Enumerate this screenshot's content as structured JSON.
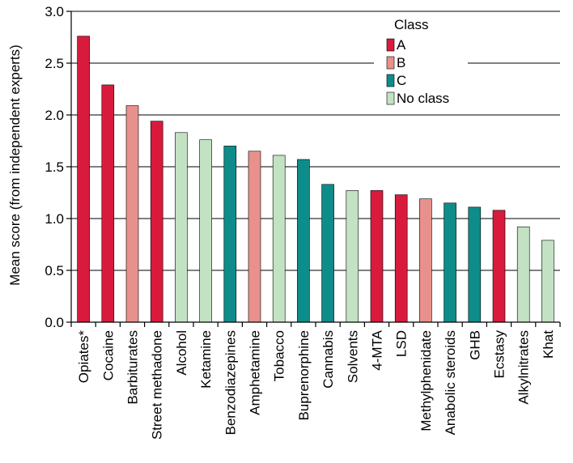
{
  "chart_data": {
    "type": "bar",
    "ylabel": "Mean score (from independent experts)",
    "ylim": [
      0,
      3.0
    ],
    "yticks": [
      "0.0",
      "0.5",
      "1.0",
      "1.5",
      "2.0",
      "2.5",
      "3.0"
    ],
    "grid": "horizontal",
    "legend_placement": "top-right",
    "categories": [
      "Opiates*",
      "Cocaine",
      "Barbiturates",
      "Street methadone",
      "Alcohol",
      "Ketamine",
      "Benzodiazepines",
      "Amphetamine",
      "Tobacco",
      "Buprenorphine",
      "Cannabis",
      "Solvents",
      "4-MTA",
      "LSD",
      "Methylphenidate",
      "Anabolic steroids",
      "GHB",
      "Ecstasy",
      "Alkylnitrates",
      "Khat"
    ],
    "values": [
      2.76,
      2.29,
      2.09,
      1.94,
      1.83,
      1.76,
      1.7,
      1.65,
      1.61,
      1.57,
      1.33,
      1.27,
      1.27,
      1.23,
      1.19,
      1.15,
      1.11,
      1.08,
      0.92,
      0.79
    ],
    "classes": [
      "A",
      "A",
      "B",
      "A",
      "No class",
      "No class",
      "C",
      "B",
      "No class",
      "C",
      "C",
      "No class",
      "A",
      "A",
      "B",
      "C",
      "C",
      "A",
      "No class",
      "No class"
    ],
    "legend": {
      "title": "Class",
      "entries": [
        {
          "label": "A",
          "color": "#d81b3c"
        },
        {
          "label": "B",
          "color": "#e8918c"
        },
        {
          "label": "C",
          "color": "#0e8c8a"
        },
        {
          "label": "No class",
          "color": "#c3e2c3"
        }
      ]
    }
  }
}
